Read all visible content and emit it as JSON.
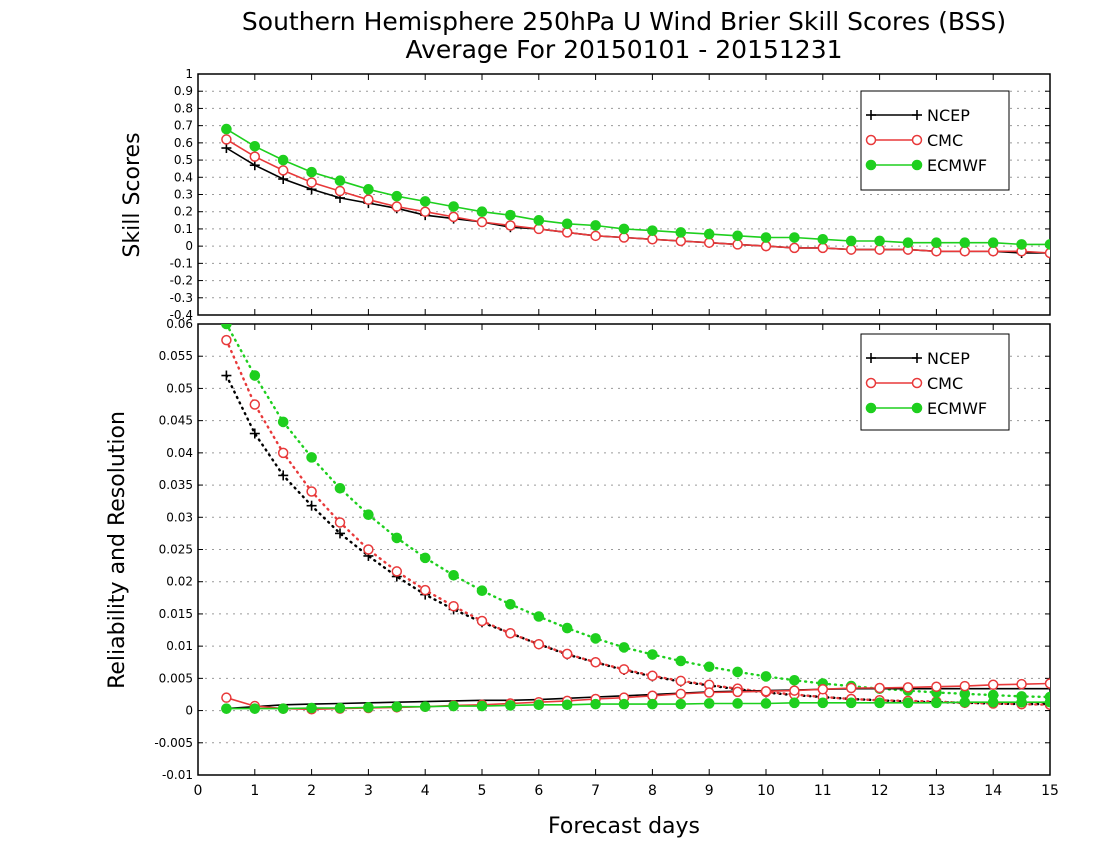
{
  "title_line1": "Southern Hemisphere 250hPa U Wind Brier Skill Scores (BSS)",
  "title_line2": "Average For 20150101 - 20151231",
  "colors": {
    "NCEP": "#000000",
    "CMC": "#e8393a",
    "ECMWF": "#1ecf1e"
  },
  "chart_data": [
    {
      "type": "line",
      "ylabel": "Skill Scores",
      "xlim": [
        0,
        15
      ],
      "ylim": [
        -0.4,
        1
      ],
      "x_ticks": [
        "0",
        "1",
        "2",
        "3",
        "4",
        "5",
        "6",
        "7",
        "8",
        "9",
        "10",
        "11",
        "12",
        "13",
        "14",
        "15"
      ],
      "y_ticks": [
        "-0.4",
        "-0.3",
        "-0.2",
        "-0.1",
        "0",
        "0.1",
        "0.2",
        "0.3",
        "0.4",
        "0.5",
        "0.6",
        "0.7",
        "0.8",
        "0.9",
        "1"
      ],
      "grid": true,
      "legend": {
        "position": "top-right",
        "entries": [
          "NCEP",
          "CMC",
          "ECMWF"
        ]
      },
      "x": [
        0.5,
        1,
        1.5,
        2,
        2.5,
        3,
        3.5,
        4,
        4.5,
        5,
        5.5,
        6,
        6.5,
        7,
        7.5,
        8,
        8.5,
        9,
        9.5,
        10,
        10.5,
        11,
        11.5,
        12,
        12.5,
        13,
        13.5,
        14,
        14.5,
        15
      ],
      "series": [
        {
          "name": "NCEP",
          "marker": "plus",
          "line": "solid",
          "values": [
            0.57,
            0.47,
            0.39,
            0.33,
            0.28,
            0.25,
            0.22,
            0.18,
            0.16,
            0.14,
            0.11,
            0.1,
            0.08,
            0.06,
            0.05,
            0.04,
            0.03,
            0.02,
            0.01,
            0.0,
            -0.01,
            -0.01,
            -0.02,
            -0.02,
            -0.02,
            -0.03,
            -0.03,
            -0.03,
            -0.04,
            -0.04
          ]
        },
        {
          "name": "CMC",
          "marker": "open-circle",
          "line": "solid",
          "values": [
            0.62,
            0.52,
            0.44,
            0.37,
            0.32,
            0.27,
            0.23,
            0.2,
            0.17,
            0.14,
            0.12,
            0.1,
            0.08,
            0.06,
            0.05,
            0.04,
            0.03,
            0.02,
            0.01,
            0.0,
            -0.01,
            -0.01,
            -0.02,
            -0.02,
            -0.02,
            -0.03,
            -0.03,
            -0.03,
            -0.03,
            -0.04
          ]
        },
        {
          "name": "ECMWF",
          "marker": "filled-circle",
          "line": "solid",
          "values": [
            0.68,
            0.58,
            0.5,
            0.43,
            0.38,
            0.33,
            0.29,
            0.26,
            0.23,
            0.2,
            0.18,
            0.15,
            0.13,
            0.12,
            0.1,
            0.09,
            0.08,
            0.07,
            0.06,
            0.05,
            0.05,
            0.04,
            0.03,
            0.03,
            0.02,
            0.02,
            0.02,
            0.02,
            0.01,
            0.01
          ]
        }
      ]
    },
    {
      "type": "line",
      "ylabel": "Reliability and Resolution",
      "xlabel": "Forecast days",
      "xlim": [
        0,
        15
      ],
      "ylim": [
        -0.01,
        0.06
      ],
      "x_ticks": [
        "0",
        "1",
        "2",
        "3",
        "4",
        "5",
        "6",
        "7",
        "8",
        "9",
        "10",
        "11",
        "12",
        "13",
        "14",
        "15"
      ],
      "y_ticks": [
        "-0.01",
        "-0.005",
        "0",
        "0.005",
        "0.01",
        "0.015",
        "0.02",
        "0.025",
        "0.03",
        "0.035",
        "0.04",
        "0.045",
        "0.05",
        "0.055",
        "0.06"
      ],
      "grid": true,
      "legend": {
        "position": "top-right",
        "entries": [
          "NCEP",
          "CMC",
          "ECMWF"
        ]
      },
      "x": [
        0.5,
        1,
        1.5,
        2,
        2.5,
        3,
        3.5,
        4,
        4.5,
        5,
        5.5,
        6,
        6.5,
        7,
        7.5,
        8,
        8.5,
        9,
        9.5,
        10,
        10.5,
        11,
        11.5,
        12,
        12.5,
        13,
        13.5,
        14,
        14.5,
        15
      ],
      "series": [
        {
          "name": "NCEP",
          "component": "resolution",
          "marker": "plus",
          "line": "dotted",
          "values": [
            0.052,
            0.043,
            0.0365,
            0.0318,
            0.0275,
            0.024,
            0.0208,
            0.018,
            0.0157,
            0.0137,
            0.012,
            0.0103,
            0.0087,
            0.0075,
            0.0063,
            0.0053,
            0.0045,
            0.0039,
            0.0033,
            0.0028,
            0.0024,
            0.0021,
            0.0018,
            0.0016,
            0.0014,
            0.0013,
            0.0012,
            0.0011,
            0.001,
            0.001
          ]
        },
        {
          "name": "CMC",
          "component": "resolution",
          "marker": "open-circle",
          "line": "dotted",
          "values": [
            0.0575,
            0.0475,
            0.04,
            0.034,
            0.0292,
            0.025,
            0.0216,
            0.0187,
            0.0162,
            0.0139,
            0.012,
            0.0103,
            0.0088,
            0.0075,
            0.0064,
            0.0054,
            0.0046,
            0.004,
            0.0034,
            0.0029,
            0.0025,
            0.0021,
            0.0018,
            0.0016,
            0.0015,
            0.0014,
            0.0012,
            0.0011,
            0.001,
            0.0009
          ]
        },
        {
          "name": "ECMWF",
          "component": "resolution",
          "marker": "filled-circle",
          "line": "dotted",
          "values": [
            0.06,
            0.052,
            0.0448,
            0.0393,
            0.0345,
            0.0304,
            0.0268,
            0.0237,
            0.021,
            0.0186,
            0.0165,
            0.0146,
            0.0128,
            0.0112,
            0.0098,
            0.0087,
            0.0077,
            0.0068,
            0.006,
            0.0053,
            0.0047,
            0.0042,
            0.0038,
            0.0034,
            0.0031,
            0.0028,
            0.0026,
            0.0024,
            0.0022,
            0.0021
          ]
        },
        {
          "name": "NCEP",
          "component": "reliability",
          "marker": "none",
          "line": "solid",
          "values": [
            0.0003,
            0.0006,
            0.0009,
            0.001,
            0.0011,
            0.0012,
            0.0013,
            0.0014,
            0.0015,
            0.0016,
            0.0016,
            0.0017,
            0.0019,
            0.0021,
            0.0023,
            0.0025,
            0.0027,
            0.0029,
            0.003,
            0.0031,
            0.0032,
            0.0033,
            0.0034,
            0.0034,
            0.0034,
            0.0034,
            0.0034,
            0.0034,
            0.0034,
            0.0034
          ]
        },
        {
          "name": "CMC",
          "component": "reliability",
          "marker": "open-circle",
          "line": "solid",
          "values": [
            0.002,
            0.0007,
            0.0003,
            0.0002,
            0.0003,
            0.0004,
            0.0005,
            0.0006,
            0.0008,
            0.0009,
            0.0011,
            0.0013,
            0.0015,
            0.0018,
            0.002,
            0.0023,
            0.0026,
            0.0028,
            0.0029,
            0.003,
            0.0031,
            0.0033,
            0.0035,
            0.0035,
            0.0036,
            0.0037,
            0.0038,
            0.004,
            0.0041,
            0.0042
          ]
        },
        {
          "name": "ECMWF",
          "component": "reliability",
          "marker": "filled-circle",
          "line": "solid",
          "values": [
            0.0003,
            0.0003,
            0.0003,
            0.0004,
            0.0004,
            0.0005,
            0.0006,
            0.0006,
            0.0007,
            0.0007,
            0.0008,
            0.0009,
            0.0009,
            0.001,
            0.001,
            0.001,
            0.001,
            0.0011,
            0.0011,
            0.0011,
            0.0012,
            0.0012,
            0.0012,
            0.0012,
            0.0012,
            0.0012,
            0.0013,
            0.0013,
            0.0013,
            0.0013
          ]
        }
      ]
    }
  ]
}
